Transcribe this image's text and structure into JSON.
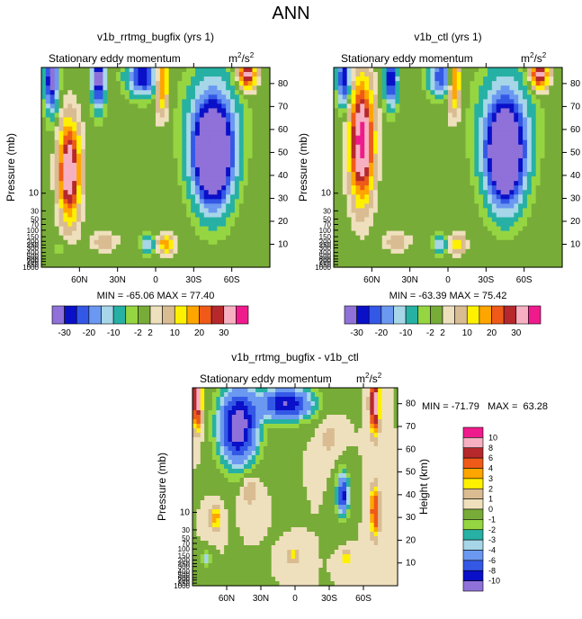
{
  "page": {
    "title": "ANN"
  },
  "chart_data": [
    {
      "type": "heatmap",
      "title": "v1b_rrtmg_bugfix (yrs 1)",
      "subtitle": "Stationary eddy momentum",
      "units_base": "m",
      "units_exp1": "2",
      "units_mid": "/s",
      "units_exp2": "2",
      "ylabel": "Pressure (mb)",
      "ylabel_right": "Height (km)",
      "x_ticks": [
        "60N",
        "30N",
        "0",
        "30S",
        "60S"
      ],
      "x_tick_lat": [
        60,
        30,
        0,
        -30,
        -60
      ],
      "x_range": [
        90,
        -90
      ],
      "p_ticks": [
        "10",
        "30",
        "50",
        "70",
        "100",
        "150",
        "200",
        "250",
        "300",
        "400",
        "500",
        "600",
        "700",
        "850",
        "1000"
      ],
      "p_tick_values": [
        10,
        30,
        50,
        70,
        100,
        150,
        200,
        250,
        300,
        400,
        500,
        600,
        700,
        850,
        1000
      ],
      "height_ticks": [
        "10",
        "20",
        "30",
        "40",
        "50",
        "60",
        "70",
        "80"
      ],
      "height_values": [
        10,
        20,
        30,
        40,
        50,
        60,
        70,
        80
      ],
      "height_range": [
        0,
        87
      ],
      "stats": "MIN = -65.06   MAX =  77.40",
      "features": [
        {
          "lat": 68,
          "z": 42,
          "v": 40,
          "rx": 8,
          "rz": 20
        },
        {
          "lat": -45,
          "z": 47,
          "v": -50,
          "rx": 14,
          "rz": 20
        },
        {
          "lat": -45,
          "z": 62,
          "v": -18,
          "rx": 20,
          "rz": 24
        },
        {
          "lat": 82,
          "z": 82,
          "v": -35,
          "rx": 5,
          "rz": 14
        },
        {
          "lat": 45,
          "z": 82,
          "v": -35,
          "rx": 5,
          "rz": 12
        },
        {
          "lat": 10,
          "z": 83,
          "v": -30,
          "rx": 12,
          "rz": 8
        },
        {
          "lat": -5,
          "z": 82,
          "v": 25,
          "rx": 5,
          "rz": 14
        },
        {
          "lat": -72,
          "z": 84,
          "v": 35,
          "rx": 7,
          "rz": 6
        },
        {
          "lat": 40,
          "z": 11,
          "v": 8,
          "rx": 10,
          "rz": 4
        },
        {
          "lat": 6,
          "z": 10,
          "v": -15,
          "rx": 5,
          "rz": 4
        },
        {
          "lat": -8,
          "z": 10,
          "v": 20,
          "rx": 6,
          "rz": 4
        },
        {
          "lat": 75,
          "z": 9,
          "v": -4,
          "rx": 6,
          "rz": 4
        }
      ]
    },
    {
      "type": "heatmap",
      "title": "v1b_ctl (yrs 1)",
      "subtitle": "Stationary eddy momentum",
      "units_base": "m",
      "units_exp1": "2",
      "units_mid": "/s",
      "units_exp2": "2",
      "ylabel": "Pressure (mb)",
      "ylabel_right": "Height (km)",
      "x_ticks": [
        "60N",
        "30N",
        "0",
        "30S",
        "60S"
      ],
      "x_tick_lat": [
        60,
        30,
        0,
        -30,
        -60
      ],
      "x_range": [
        90,
        -90
      ],
      "p_ticks": [
        "10",
        "30",
        "50",
        "70",
        "100",
        "150",
        "200",
        "250",
        "300",
        "400",
        "500",
        "600",
        "700",
        "850",
        "1000"
      ],
      "p_tick_values": [
        10,
        30,
        50,
        70,
        100,
        150,
        200,
        250,
        300,
        400,
        500,
        600,
        700,
        850,
        1000
      ],
      "height_ticks": [
        "10",
        "20",
        "30",
        "40",
        "50",
        "60",
        "70",
        "80"
      ],
      "height_values": [
        10,
        20,
        30,
        40,
        50,
        60,
        70,
        80
      ],
      "height_range": [
        0,
        87
      ],
      "stats": "MIN = -63.39   MAX =  75.42",
      "features": [
        {
          "lat": 68,
          "z": 55,
          "v": 45,
          "rx": 9,
          "rz": 24
        },
        {
          "lat": -45,
          "z": 47,
          "v": -45,
          "rx": 14,
          "rz": 20
        },
        {
          "lat": -45,
          "z": 62,
          "v": -18,
          "rx": 20,
          "rz": 24
        },
        {
          "lat": 82,
          "z": 82,
          "v": -30,
          "rx": 5,
          "rz": 12
        },
        {
          "lat": 45,
          "z": 82,
          "v": -30,
          "rx": 5,
          "rz": 12
        },
        {
          "lat": 5,
          "z": 83,
          "v": -25,
          "rx": 10,
          "rz": 8
        },
        {
          "lat": -5,
          "z": 82,
          "v": 25,
          "rx": 5,
          "rz": 14
        },
        {
          "lat": -72,
          "z": 84,
          "v": 35,
          "rx": 7,
          "rz": 6
        },
        {
          "lat": 40,
          "z": 11,
          "v": 8,
          "rx": 10,
          "rz": 4
        },
        {
          "lat": 6,
          "z": 10,
          "v": -15,
          "rx": 5,
          "rz": 4
        },
        {
          "lat": -8,
          "z": 10,
          "v": 15,
          "rx": 6,
          "rz": 4
        }
      ]
    },
    {
      "type": "heatmap",
      "title": "v1b_rrtmg_bugfix - v1b_ctl",
      "subtitle": "Stationary eddy momentum",
      "units_base": "m",
      "units_exp1": "2",
      "units_mid": "/s",
      "units_exp2": "2",
      "ylabel": "Pressure (mb)",
      "ylabel_right": "Height (km)",
      "x_ticks": [
        "60N",
        "30N",
        "0",
        "30S",
        "60S"
      ],
      "x_tick_lat": [
        60,
        30,
        0,
        -30,
        -60
      ],
      "x_range": [
        90,
        -90
      ],
      "p_ticks": [
        "10",
        "30",
        "50",
        "70",
        "100",
        "150",
        "200",
        "250",
        "300",
        "400",
        "500",
        "600",
        "700",
        "850",
        "1000"
      ],
      "p_tick_values": [
        10,
        30,
        50,
        70,
        100,
        150,
        200,
        250,
        300,
        400,
        500,
        600,
        700,
        850,
        1000
      ],
      "height_ticks": [
        "10",
        "20",
        "30",
        "40",
        "50",
        "60",
        "70",
        "80"
      ],
      "height_values": [
        10,
        20,
        30,
        40,
        50,
        60,
        70,
        80
      ],
      "height_range": [
        0,
        87
      ],
      "stats": "MIN = -71.79   MAX =  63.28",
      "features": [
        {
          "lat": 50,
          "z": 70,
          "v": -12,
          "rx": 16,
          "rz": 16
        },
        {
          "lat": 8,
          "z": 80,
          "v": -10,
          "rx": 22,
          "rz": 7
        },
        {
          "lat": -42,
          "z": 40,
          "v": -9,
          "rx": 5,
          "rz": 9
        },
        {
          "lat": 86,
          "z": 82,
          "v": 10,
          "rx": 4,
          "rz": 12
        },
        {
          "lat": -70,
          "z": 80,
          "v": 10,
          "rx": 4,
          "rz": 12
        },
        {
          "lat": -70,
          "z": 33,
          "v": 6,
          "rx": 4,
          "rz": 11
        },
        {
          "lat": 70,
          "z": 30,
          "v": 4,
          "rx": 5,
          "rz": 5
        },
        {
          "lat": 78,
          "z": 12,
          "v": -4,
          "rx": 4,
          "rz": 3
        },
        {
          "lat": 2,
          "z": 13,
          "v": 3,
          "rx": 5,
          "rz": 3
        },
        {
          "lat": -45,
          "z": 12,
          "v": 3,
          "rx": 4,
          "rz": 3
        },
        {
          "lat": 40,
          "z": 42,
          "v": 2,
          "rx": 8,
          "rz": 8
        },
        {
          "lat": -30,
          "z": 65,
          "v": 1.5,
          "rx": 8,
          "rz": 8
        }
      ]
    }
  ],
  "colorbar_top": {
    "labels": [
      "-30",
      "-20",
      "-10",
      "-2",
      "2",
      "10",
      "20",
      "30"
    ],
    "levels": [
      -40,
      -30,
      -25,
      -20,
      -15,
      -10,
      -5,
      -2,
      2,
      5,
      10,
      15,
      20,
      25,
      30,
      40
    ],
    "colors": [
      "#8f71d9",
      "#0a10c8",
      "#3458e6",
      "#6b98f0",
      "#a6d6e8",
      "#26b1a4",
      "#96d542",
      "#78ac38",
      "#efe0bd",
      "#d9bc92",
      "#fef100",
      "#ffa500",
      "#ef5a18",
      "#b6282c",
      "#f6b0c2",
      "#ef1b8c"
    ]
  },
  "colorbar_diff": {
    "labels": [
      "10",
      "8",
      "6",
      "4",
      "3",
      "2",
      "1",
      "0",
      "-1",
      "-2",
      "-3",
      "-4",
      "-6",
      "-8",
      "-10"
    ],
    "levels": [
      -12,
      -10,
      -8,
      -6,
      -4,
      -3,
      -2,
      -1,
      0,
      1,
      2,
      3,
      4,
      6,
      8,
      10,
      12
    ],
    "colors": [
      "#8f71d9",
      "#0a10c8",
      "#3458e6",
      "#6b98f0",
      "#a6d6e8",
      "#26b1a4",
      "#96d542",
      "#78ac38",
      "#efe0bd",
      "#d9bc92",
      "#fef100",
      "#ffa500",
      "#ef5a18",
      "#b6282c",
      "#f6b0c2",
      "#ef1b8c"
    ]
  }
}
